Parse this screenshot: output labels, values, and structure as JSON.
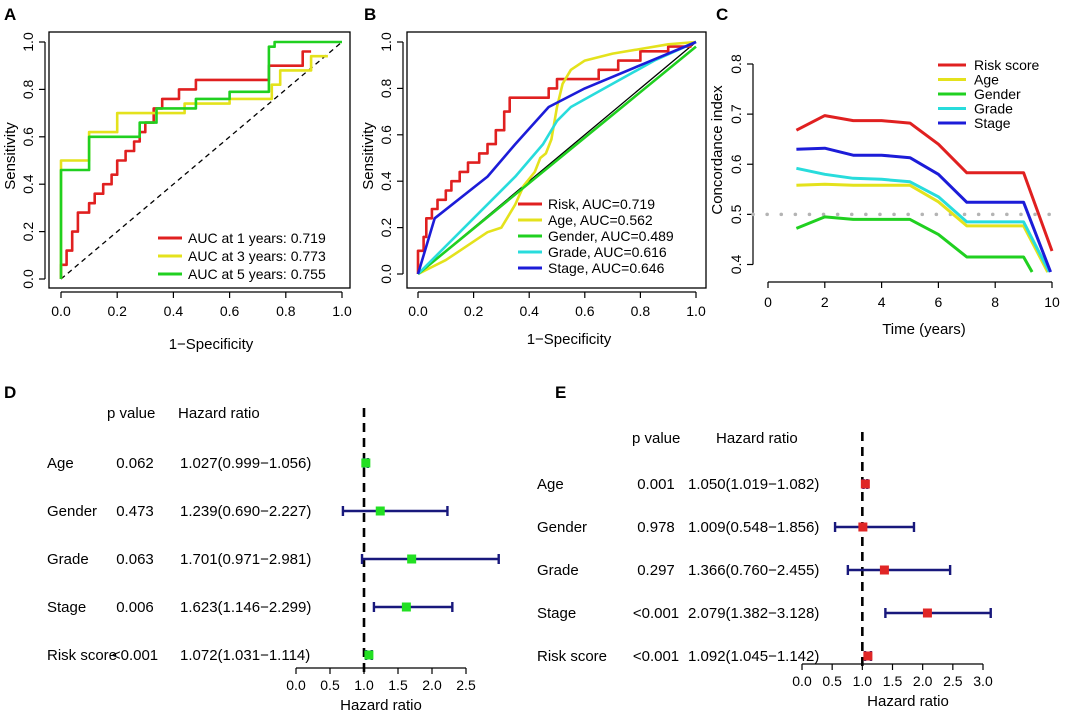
{
  "colors": {
    "red": "#e02020",
    "yellow": "#e4e21c",
    "green": "#20d020",
    "cyan": "#28dcdc",
    "blue": "#1c1cd8",
    "navy": "#18187c",
    "black": "#000000",
    "grey": "#b4b4b4",
    "sq_green": "#22e022",
    "sq_red": "#e02626"
  },
  "chart_data": [
    {
      "panel": "A",
      "type": "line",
      "xlabel": "1−Specificity",
      "ylabel": "Sensitivity",
      "xlim": [
        0,
        1
      ],
      "ylim": [
        0,
        1
      ],
      "x_ticks": [
        "0.0",
        "0.2",
        "0.4",
        "0.6",
        "0.8",
        "1.0"
      ],
      "y_ticks": [
        "0.0",
        "0.2",
        "0.4",
        "0.6",
        "0.8",
        "1.0"
      ],
      "legend_position": "bottom-right",
      "series": [
        {
          "name": "AUC at 1 years: 0.719",
          "color": "red",
          "x": [
            0,
            0,
            0.02,
            0.02,
            0.04,
            0.04,
            0.06,
            0.06,
            0.1,
            0.1,
            0.12,
            0.12,
            0.15,
            0.15,
            0.18,
            0.18,
            0.2,
            0.2,
            0.23,
            0.23,
            0.26,
            0.26,
            0.28,
            0.28,
            0.3,
            0.3,
            0.33,
            0.33,
            0.36,
            0.36,
            0.42,
            0.42,
            0.48,
            0.48,
            0.53,
            0.53,
            0.74,
            0.74,
            0.86,
            0.86,
            0.89
          ],
          "y": [
            0,
            0.06,
            0.06,
            0.12,
            0.12,
            0.2,
            0.2,
            0.28,
            0.28,
            0.32,
            0.32,
            0.36,
            0.36,
            0.4,
            0.4,
            0.44,
            0.44,
            0.5,
            0.5,
            0.54,
            0.54,
            0.58,
            0.58,
            0.62,
            0.62,
            0.66,
            0.66,
            0.72,
            0.72,
            0.76,
            0.76,
            0.8,
            0.8,
            0.84,
            0.84,
            0.84,
            0.84,
            0.9,
            0.9,
            0.96,
            0.96
          ]
        },
        {
          "name": "AUC at 3 years: 0.773",
          "color": "yellow",
          "x": [
            0,
            0,
            0.1,
            0.1,
            0.2,
            0.2,
            0.44,
            0.44,
            0.6,
            0.6,
            0.75,
            0.75,
            0.78,
            0.78,
            0.89,
            0.89,
            0.95
          ],
          "y": [
            0,
            0.5,
            0.5,
            0.62,
            0.62,
            0.7,
            0.7,
            0.74,
            0.74,
            0.76,
            0.76,
            0.82,
            0.82,
            0.88,
            0.88,
            0.94,
            0.94
          ]
        },
        {
          "name": "AUC at 5 years: 0.755",
          "color": "green",
          "x": [
            0,
            0,
            0.1,
            0.1,
            0.28,
            0.28,
            0.34,
            0.34,
            0.48,
            0.48,
            0.6,
            0.6,
            0.74,
            0.74,
            0.76,
            0.76,
            1.0
          ],
          "y": [
            0,
            0.46,
            0.46,
            0.6,
            0.6,
            0.66,
            0.66,
            0.72,
            0.72,
            0.76,
            0.76,
            0.79,
            0.79,
            0.98,
            0.98,
            1.0,
            1.0
          ]
        },
        {
          "name": "reference",
          "color": "black",
          "dashed": true,
          "x": [
            0,
            1
          ],
          "y": [
            0,
            1
          ]
        }
      ]
    },
    {
      "panel": "B",
      "type": "line",
      "xlabel": "1−Specificity",
      "ylabel": "Sensitivity",
      "xlim": [
        0,
        1
      ],
      "ylim": [
        0,
        1
      ],
      "x_ticks": [
        "0.0",
        "0.2",
        "0.4",
        "0.6",
        "0.8",
        "1.0"
      ],
      "y_ticks": [
        "0.0",
        "0.2",
        "0.4",
        "0.6",
        "0.8",
        "1.0"
      ],
      "legend_position": "bottom-right",
      "series": [
        {
          "name": "Risk, AUC=0.719",
          "color": "red",
          "x": [
            0,
            0,
            0.02,
            0.02,
            0.03,
            0.03,
            0.05,
            0.05,
            0.07,
            0.07,
            0.1,
            0.1,
            0.12,
            0.12,
            0.15,
            0.15,
            0.18,
            0.18,
            0.22,
            0.22,
            0.25,
            0.25,
            0.28,
            0.28,
            0.31,
            0.31,
            0.33,
            0.33,
            0.47,
            0.47,
            0.5,
            0.5,
            0.65,
            0.65,
            0.72,
            0.72,
            0.8,
            0.8,
            0.9,
            0.9,
            0.98,
            0.98
          ],
          "y": [
            0,
            0.1,
            0.1,
            0.16,
            0.16,
            0.24,
            0.24,
            0.28,
            0.28,
            0.32,
            0.32,
            0.36,
            0.36,
            0.4,
            0.4,
            0.44,
            0.44,
            0.48,
            0.48,
            0.52,
            0.52,
            0.56,
            0.56,
            0.62,
            0.62,
            0.7,
            0.7,
            0.76,
            0.76,
            0.8,
            0.8,
            0.84,
            0.84,
            0.88,
            0.88,
            0.92,
            0.92,
            0.96,
            0.96,
            0.98,
            0.98,
            1.0
          ]
        },
        {
          "name": "Age, AUC=0.562",
          "color": "yellow",
          "x": [
            0,
            0.1,
            0.15,
            0.25,
            0.3,
            0.35,
            0.38,
            0.42,
            0.44,
            0.46,
            0.48,
            0.5,
            0.52,
            0.55,
            0.6,
            0.7,
            0.8,
            0.9,
            1.0
          ],
          "y": [
            0,
            0.06,
            0.1,
            0.18,
            0.2,
            0.3,
            0.38,
            0.44,
            0.5,
            0.52,
            0.58,
            0.72,
            0.82,
            0.88,
            0.92,
            0.95,
            0.97,
            0.99,
            1.0
          ]
        },
        {
          "name": "Gender, AUC=0.489",
          "color": "green",
          "x": [
            0,
            1
          ],
          "y": [
            0,
            0.98
          ]
        },
        {
          "name": "Grade, AUC=0.616",
          "color": "cyan",
          "x": [
            0,
            0.2,
            0.35,
            0.45,
            0.5,
            0.55,
            0.7,
            0.85,
            1.0
          ],
          "y": [
            0,
            0.24,
            0.42,
            0.56,
            0.66,
            0.72,
            0.82,
            0.92,
            1.0
          ]
        },
        {
          "name": "Stage, AUC=0.646",
          "color": "blue",
          "x": [
            0,
            0.06,
            0.25,
            0.35,
            0.47,
            0.6,
            0.8,
            1.0
          ],
          "y": [
            0,
            0.24,
            0.42,
            0.56,
            0.72,
            0.8,
            0.9,
            1.0
          ]
        },
        {
          "name": "reference",
          "color": "black",
          "x": [
            0,
            1
          ],
          "y": [
            0,
            1
          ]
        }
      ]
    },
    {
      "panel": "C",
      "type": "line",
      "xlabel": "Time (years)",
      "ylabel": "Concordance index",
      "xlim": [
        0,
        10
      ],
      "ylim": [
        0.385,
        0.85
      ],
      "x_ticks": [
        "0",
        "2",
        "4",
        "6",
        "8",
        "10"
      ],
      "y_ticks": [
        "0.4",
        "0.5",
        "0.6",
        "0.7",
        "0.8"
      ],
      "reference_line": {
        "y": 0.5,
        "color": "grey",
        "dotted": true
      },
      "legend_position": "top-right",
      "series": [
        {
          "name": "Risk score",
          "color": "red",
          "x": [
            1,
            2,
            3,
            4,
            5,
            6,
            7,
            8,
            9,
            10
          ],
          "y": [
            0.668,
            0.697,
            0.687,
            0.687,
            0.682,
            0.64,
            0.583,
            0.583,
            0.583,
            0.427
          ]
        },
        {
          "name": "Age",
          "color": "yellow",
          "x": [
            1,
            2,
            3,
            4,
            5,
            6,
            7,
            8,
            9,
            9.85
          ],
          "y": [
            0.558,
            0.56,
            0.558,
            0.558,
            0.558,
            0.525,
            0.477,
            0.477,
            0.477,
            0.385
          ]
        },
        {
          "name": "Gender",
          "color": "green",
          "x": [
            1,
            2,
            3,
            4,
            5,
            6,
            7,
            8,
            9,
            9.3
          ],
          "y": [
            0.472,
            0.495,
            0.49,
            0.49,
            0.49,
            0.46,
            0.415,
            0.415,
            0.415,
            0.385
          ]
        },
        {
          "name": "Grade",
          "color": "cyan",
          "x": [
            1,
            2,
            3,
            4,
            5,
            6,
            7,
            8,
            9,
            9.9
          ],
          "y": [
            0.592,
            0.58,
            0.572,
            0.57,
            0.565,
            0.535,
            0.485,
            0.485,
            0.485,
            0.385
          ]
        },
        {
          "name": "Stage",
          "color": "blue",
          "x": [
            1,
            2,
            3,
            4,
            5,
            6,
            7,
            8,
            9,
            9.95
          ],
          "y": [
            0.63,
            0.632,
            0.618,
            0.618,
            0.613,
            0.58,
            0.524,
            0.524,
            0.524,
            0.385
          ]
        }
      ]
    },
    {
      "panel": "D",
      "type": "forest",
      "header_p": "p value",
      "header_hr": "Hazard ratio",
      "xlabel": "Hazard ratio",
      "xlim": [
        0,
        2.5
      ],
      "ref_line": 1.0,
      "x_ticks": [
        "0.0",
        "0.5",
        "1.0",
        "1.5",
        "2.0",
        "2.5"
      ],
      "marker_color": "sq_green",
      "rows": [
        {
          "label": "Age",
          "p": "0.062",
          "hr_text": "1.027(0.999−1.056)",
          "hr": 1.027,
          "lo": 0.999,
          "hi": 1.056
        },
        {
          "label": "Gender",
          "p": "0.473",
          "hr_text": "1.239(0.690−2.227)",
          "hr": 1.239,
          "lo": 0.69,
          "hi": 2.227
        },
        {
          "label": "Grade",
          "p": "0.063",
          "hr_text": "1.701(0.971−2.981)",
          "hr": 1.701,
          "lo": 0.971,
          "hi": 2.981
        },
        {
          "label": "Stage",
          "p": "0.006",
          "hr_text": "1.623(1.146−2.299)",
          "hr": 1.623,
          "lo": 1.146,
          "hi": 2.299
        },
        {
          "label": "Risk score",
          "p": "<0.001",
          "hr_text": "1.072(1.031−1.114)",
          "hr": 1.072,
          "lo": 1.031,
          "hi": 1.114
        }
      ]
    },
    {
      "panel": "E",
      "type": "forest",
      "header_p": "p value",
      "header_hr": "Hazard ratio",
      "xlabel": "Hazard ratio",
      "xlim": [
        0,
        3.0
      ],
      "ref_line": 1.0,
      "x_ticks": [
        "0.0",
        "0.5",
        "1.0",
        "1.5",
        "2.0",
        "2.5",
        "3.0"
      ],
      "marker_color": "sq_red",
      "rows": [
        {
          "label": "Age",
          "p": "0.001",
          "hr_text": "1.050(1.019−1.082)",
          "hr": 1.05,
          "lo": 1.019,
          "hi": 1.082
        },
        {
          "label": "Gender",
          "p": "0.978",
          "hr_text": "1.009(0.548−1.856)",
          "hr": 1.009,
          "lo": 0.548,
          "hi": 1.856
        },
        {
          "label": "Grade",
          "p": "0.297",
          "hr_text": "1.366(0.760−2.455)",
          "hr": 1.366,
          "lo": 0.76,
          "hi": 2.455
        },
        {
          "label": "Stage",
          "p": "<0.001",
          "hr_text": "2.079(1.382−3.128)",
          "hr": 2.079,
          "lo": 1.382,
          "hi": 3.128
        },
        {
          "label": "Risk score",
          "p": "<0.001",
          "hr_text": "1.092(1.045−1.142)",
          "hr": 1.092,
          "lo": 1.045,
          "hi": 1.142
        }
      ]
    }
  ]
}
